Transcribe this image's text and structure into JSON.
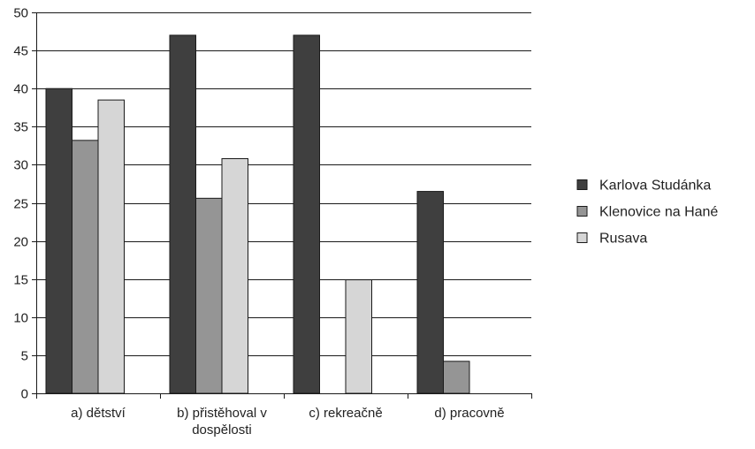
{
  "chart_data": {
    "type": "bar",
    "categories": [
      "a) dětství",
      "b) přistěhoval v dospělosti",
      "c) rekreačně",
      "d) pracovně"
    ],
    "category_label_lines": [
      [
        "a) dětství"
      ],
      [
        "b) přistěhoval v",
        "dospělosti"
      ],
      [
        "c) rekreačně"
      ],
      [
        "d) pracovně"
      ]
    ],
    "series": [
      {
        "name": "Karlova Studánka",
        "color": "#3f3f3f",
        "values": [
          40,
          47,
          47,
          26.5
        ]
      },
      {
        "name": "Klenovice na Hané",
        "color": "#959595",
        "values": [
          33.2,
          25.6,
          0,
          4.2
        ]
      },
      {
        "name": "Rusava",
        "color": "#d6d6d6",
        "values": [
          38.5,
          30.8,
          14.9,
          0
        ]
      }
    ],
    "ylim": [
      0,
      50
    ],
    "yticks": [
      0,
      5,
      10,
      15,
      20,
      25,
      30,
      35,
      40,
      45,
      50
    ],
    "grid": true,
    "legend_position": "right"
  }
}
